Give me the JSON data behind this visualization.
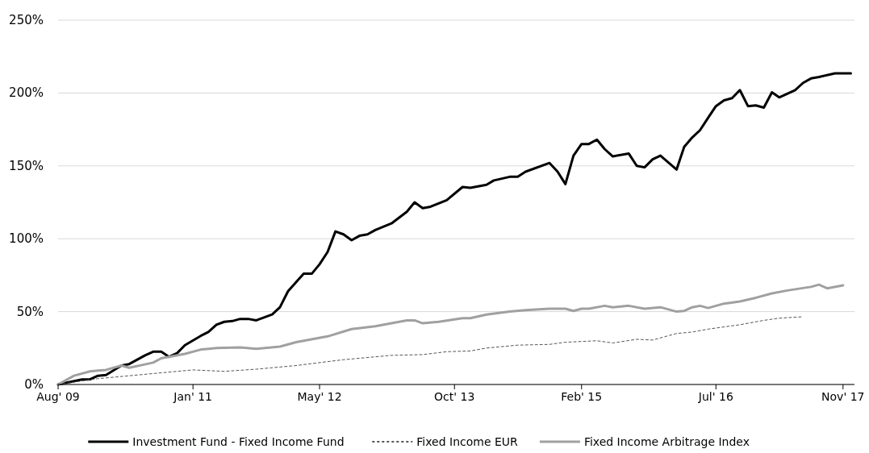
{
  "chart_data": {
    "type": "line",
    "xlim": [
      "2009-08",
      "2017-12-15"
    ],
    "xticks": [
      {
        "value": "2009-08",
        "label": "Aug' 09"
      },
      {
        "value": "2011-01",
        "label": "Jan' 11"
      },
      {
        "value": "2012-05",
        "label": "May' 12"
      },
      {
        "value": "2013-10",
        "label": "Oct' 13"
      },
      {
        "value": "2015-02",
        "label": "Feb' 15"
      },
      {
        "value": "2016-07",
        "label": "Jul' 16"
      },
      {
        "value": "2017-11",
        "label": "Nov' 17"
      }
    ],
    "ylim": [
      0,
      250
    ],
    "yticks": [
      {
        "value": 0,
        "label": "0%"
      },
      {
        "value": 50,
        "label": "50%"
      },
      {
        "value": 100,
        "label": "100%"
      },
      {
        "value": 150,
        "label": "150%"
      },
      {
        "value": 200,
        "label": "200%"
      },
      {
        "value": 250,
        "label": "250%"
      }
    ],
    "grid": "y",
    "legend": "bottom",
    "series": [
      {
        "name": "Investment Fund - Fixed Income Fund",
        "color": "#000000",
        "line_style": "solid",
        "x": [
          "2009-08",
          "2009-11",
          "2009-12",
          "2010-01",
          "2010-02",
          "2010-04",
          "2010-05",
          "2010-07",
          "2010-08",
          "2010-09",
          "2010-10",
          "2010-11",
          "2010-12",
          "2011-02",
          "2011-03",
          "2011-04",
          "2011-05",
          "2011-06",
          "2011-07",
          "2011-08",
          "2011-09",
          "2011-11",
          "2011-12",
          "2012-01",
          "2012-03",
          "2012-04",
          "2012-05",
          "2012-06",
          "2012-07",
          "2012-08",
          "2012-09",
          "2012-10",
          "2012-11",
          "2012-12",
          "2013-02",
          "2013-04",
          "2013-05",
          "2013-06",
          "2013-07",
          "2013-09",
          "2013-11",
          "2013-12",
          "2014-02",
          "2014-03",
          "2014-05",
          "2014-06",
          "2014-07",
          "2014-10",
          "2014-11",
          "2014-12",
          "2015-01",
          "2015-02",
          "2015-03",
          "2015-04",
          "2015-05",
          "2015-06",
          "2015-08",
          "2015-09",
          "2015-10",
          "2015-11",
          "2015-12",
          "2016-02",
          "2016-03",
          "2016-04",
          "2016-05",
          "2016-06",
          "2016-07",
          "2016-08",
          "2016-09",
          "2016-10",
          "2016-11",
          "2016-12",
          "2017-01",
          "2017-02",
          "2017-03",
          "2017-05",
          "2017-06",
          "2017-07",
          "2017-08",
          "2017-10",
          "2017-12"
        ],
        "values": [
          0,
          3.5,
          3.5,
          6,
          6.5,
          13,
          14,
          20,
          22.5,
          22.5,
          19,
          21.5,
          27,
          33.5,
          36,
          41,
          43,
          43.5,
          45,
          45,
          44,
          48,
          53,
          64,
          76,
          76,
          82.5,
          91,
          105,
          103,
          99,
          102,
          103,
          106,
          110.5,
          118.5,
          125,
          121,
          122,
          126.5,
          135.5,
          135,
          137,
          140,
          142.5,
          142.5,
          146,
          152,
          146,
          137.5,
          157,
          165,
          165,
          168,
          161.5,
          156.5,
          158.5,
          150,
          149,
          154.5,
          157,
          147.5,
          163,
          169.5,
          174.5,
          183,
          191,
          195,
          196.5,
          202,
          191,
          191.5,
          190,
          200.5,
          197,
          202,
          207,
          210,
          211,
          213.5,
          213.5
        ]
      },
      {
        "name": "Fixed Income EUR",
        "color": "#555555",
        "line_style": "dashed",
        "x": [
          "2009-08",
          "2010-01",
          "2010-06",
          "2011-01",
          "2011-05",
          "2011-09",
          "2012-01",
          "2012-02",
          "2012-05",
          "2012-08",
          "2013-02",
          "2013-06",
          "2013-09",
          "2013-12",
          "2014-02",
          "2014-06",
          "2014-10",
          "2014-12",
          "2015-02",
          "2015-04",
          "2015-06",
          "2015-09",
          "2015-11",
          "2016-02",
          "2016-04",
          "2016-06",
          "2016-10",
          "2017-01",
          "2017-03",
          "2017-06"
        ],
        "values": [
          0,
          4,
          6.5,
          10,
          9,
          10.5,
          12.5,
          13,
          15,
          17,
          20,
          20.5,
          22.5,
          23,
          25,
          27,
          27.5,
          29,
          29.5,
          30,
          28.5,
          31,
          30.5,
          35,
          36,
          38,
          41,
          44,
          45.5,
          46.5
        ]
      },
      {
        "name": "Fixed Income Arbitrage Index",
        "color": "#a0a0a0",
        "line_style": "solid",
        "x": [
          "2009-08",
          "2009-10",
          "2009-12",
          "2010-01",
          "2010-02",
          "2010-04",
          "2010-05",
          "2010-08",
          "2010-09",
          "2010-12",
          "2011-02",
          "2011-04",
          "2011-07",
          "2011-09",
          "2011-12",
          "2012-02",
          "2012-06",
          "2012-09",
          "2012-12",
          "2013-02",
          "2013-04",
          "2013-05",
          "2013-06",
          "2013-08",
          "2013-11",
          "2013-12",
          "2014-02",
          "2014-05",
          "2014-07",
          "2014-10",
          "2014-12",
          "2015-01",
          "2015-02",
          "2015-03",
          "2015-05",
          "2015-06",
          "2015-08",
          "2015-10",
          "2015-12",
          "2016-02",
          "2016-03",
          "2016-04",
          "2016-05",
          "2016-06",
          "2016-08",
          "2016-10",
          "2016-12",
          "2017-02",
          "2017-04",
          "2017-07",
          "2017-08",
          "2017-09",
          "2017-11"
        ],
        "values": [
          0,
          6,
          9,
          9.5,
          10,
          13,
          11.5,
          15,
          18,
          21,
          24,
          25,
          25.5,
          24.5,
          26,
          29,
          33,
          38,
          40,
          42,
          44,
          44,
          42,
          43,
          45.5,
          45.5,
          48,
          50,
          51,
          52,
          52,
          50.5,
          52,
          52,
          54,
          53,
          54,
          52,
          53,
          50,
          50.5,
          53,
          54,
          52.5,
          55.5,
          57,
          59.5,
          62.5,
          64.5,
          67,
          68.5,
          66,
          68
        ]
      }
    ]
  }
}
